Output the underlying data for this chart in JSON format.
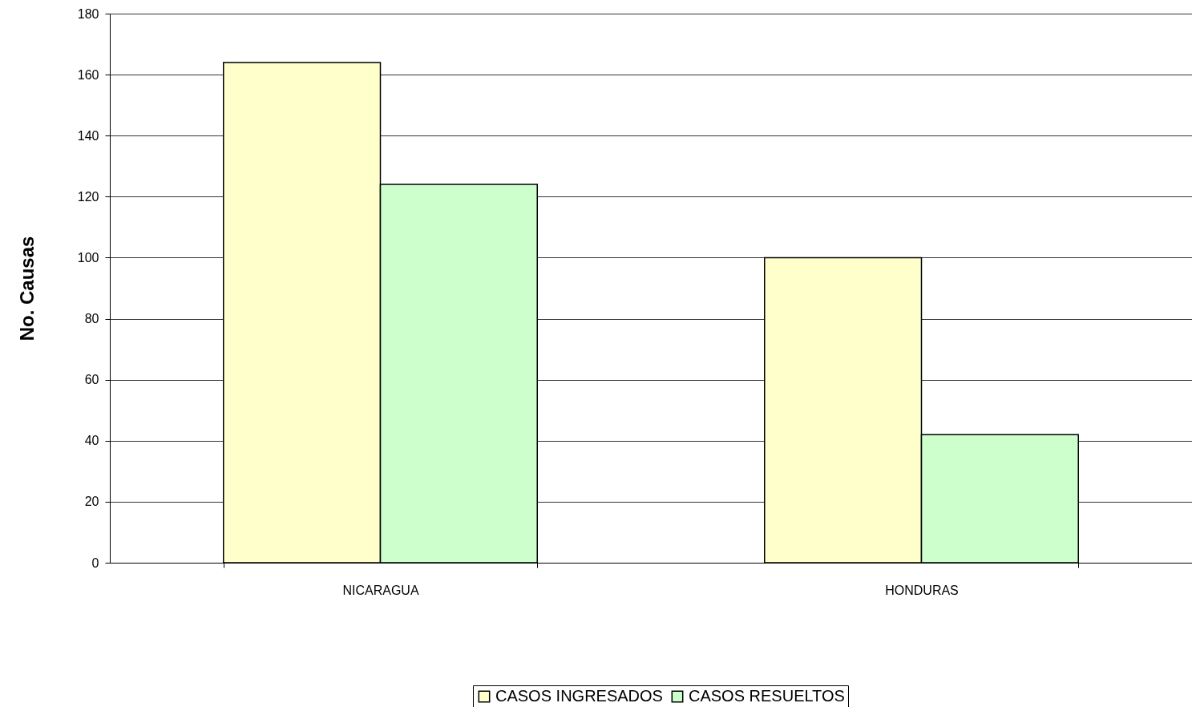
{
  "chart_data": {
    "type": "bar",
    "ylabel": "No. Causas",
    "categories": [
      "NICARAGUA",
      "HONDURAS"
    ],
    "series": [
      {
        "name": "CASOS INGRESADOS",
        "color": "#ffffcc",
        "values": [
          164,
          100
        ]
      },
      {
        "name": "CASOS RESUELTOS",
        "color": "#ccffcc",
        "values": [
          124,
          42
        ]
      }
    ],
    "ylim": [
      0,
      180
    ],
    "yticks": [
      0,
      20,
      40,
      60,
      80,
      100,
      120,
      140,
      160,
      180
    ],
    "grid": "y",
    "legend": "bottom"
  }
}
